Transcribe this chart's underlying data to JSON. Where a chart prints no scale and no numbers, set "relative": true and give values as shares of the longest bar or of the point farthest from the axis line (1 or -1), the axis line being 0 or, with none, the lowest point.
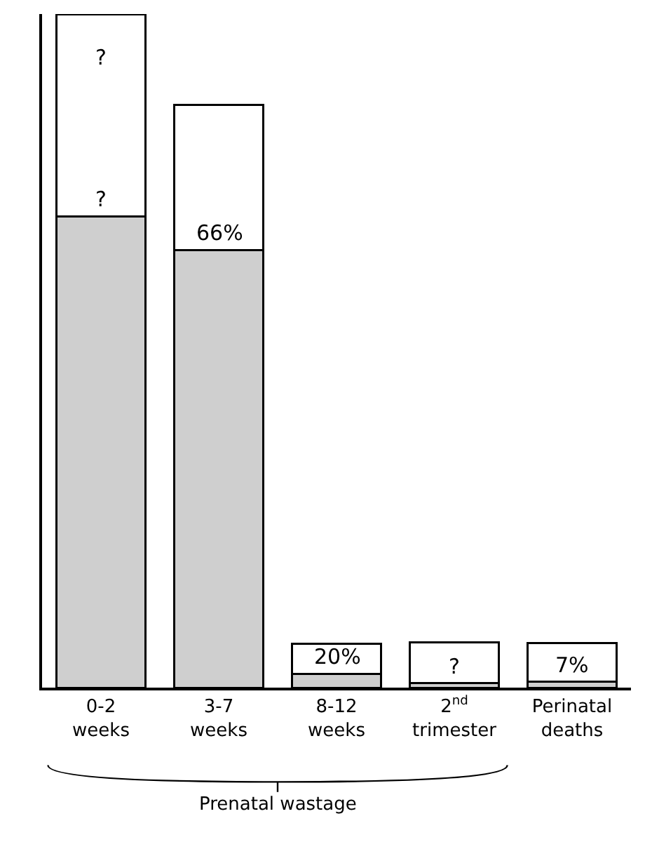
{
  "chart_data": {
    "type": "bar",
    "relative": true,
    "stacked": true,
    "grid": false,
    "categories": [
      "0-2 weeks",
      "3-7 weeks",
      "8-12 weeks",
      "2$^{nd}$ trimester",
      "Perinatal deaths"
    ],
    "series": [
      {
        "color": "#cfcfcf",
        "values": [
          0.7,
          0.65,
          0.02,
          0.007,
          0.009
        ]
      },
      {
        "color": "#ffffff",
        "values": [
          0.3,
          0.215,
          0.045,
          0.06,
          0.057
        ]
      }
    ],
    "annotations": [
      "Prenatal wastage",
      {
        "text": "?",
        "x": "0-2 weeks",
        "y": 1
      },
      {
        "text": "?",
        "x": "0-2 weeks",
        "y": 0.7
      },
      {
        "text": "66%",
        "x": "3-7 weeks",
        "y": 0.65
      },
      {
        "text": "20%",
        "x": "8-12 weeks",
        "y": 0.02
      },
      {
        "text": "?",
        "x": "2$^{nd}$ trimester",
        "y": 0.007
      },
      {
        "text": "7%",
        "x": "Perinatal deaths",
        "y": 0.009
      }
    ]
  }
}
